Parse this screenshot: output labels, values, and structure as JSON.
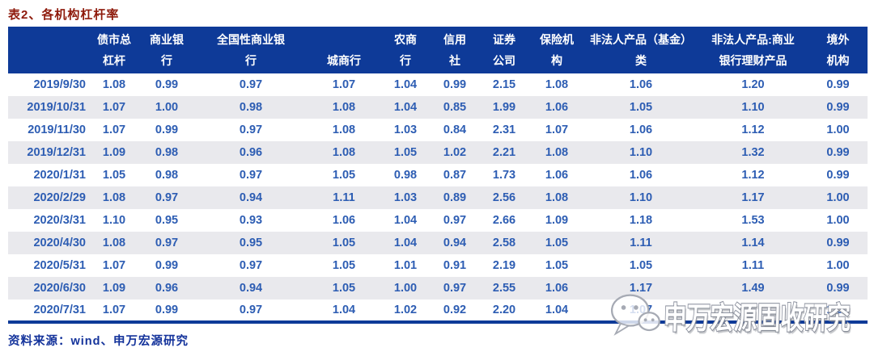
{
  "page": {
    "title": "表2、各机构杠杆率",
    "source": "资料来源：wind、申万宏源研究"
  },
  "watermark": {
    "icon": "wechat-icon",
    "text": "申万宏源固收研究"
  },
  "colors": {
    "header_bg": "#0e3a98",
    "title_red": "#8e1a0b",
    "cell_text_blue": "#2d5db3",
    "stripe_bg": "#e9e9ed",
    "source_blue": "#14339b",
    "table_border": "#0e3a98"
  },
  "chart_data": {
    "type": "table",
    "title": "表2、各机构杠杆率",
    "source": "资料来源：wind、申万宏源研究",
    "columns": [
      "",
      "债市总杠杆",
      "商业银行",
      "全国性商业银行",
      "城商行",
      "农商行",
      "信用社",
      "证券公司",
      "保险机构",
      "非法人产品（基金）类",
      "非法人产品:商业银行理财产品",
      "境外机构"
    ],
    "header_lines": [
      "",
      "债市总\n杠杆",
      "商业银\n行",
      "全国性商业银\n行",
      "\n城商行",
      "农商\n行",
      "信用\n社",
      "证券\n公司",
      "保险机\n构",
      "非法人产品（基金）\n类",
      "非法人产品:商业\n银行理财产品",
      "境外\n机构"
    ],
    "rows": [
      {
        "date": "2019/9/30",
        "values": [
          "1.08",
          "0.99",
          "0.97",
          "1.07",
          "1.04",
          "0.99",
          "2.15",
          "1.08",
          "1.06",
          "1.20",
          "0.99"
        ]
      },
      {
        "date": "2019/10/31",
        "values": [
          "1.07",
          "1.00",
          "0.98",
          "1.08",
          "1.04",
          "0.85",
          "1.99",
          "1.06",
          "1.05",
          "1.10",
          "0.99"
        ]
      },
      {
        "date": "2019/11/30",
        "values": [
          "1.07",
          "0.99",
          "0.97",
          "1.08",
          "1.03",
          "0.84",
          "2.31",
          "1.07",
          "1.06",
          "1.12",
          "1.00"
        ]
      },
      {
        "date": "2019/12/31",
        "values": [
          "1.09",
          "0.98",
          "0.96",
          "1.08",
          "1.05",
          "1.02",
          "2.21",
          "1.08",
          "1.10",
          "1.32",
          "0.99"
        ]
      },
      {
        "date": "2020/1/31",
        "values": [
          "1.05",
          "0.98",
          "0.97",
          "1.05",
          "0.98",
          "0.87",
          "1.73",
          "1.06",
          "1.06",
          "1.12",
          "0.99"
        ]
      },
      {
        "date": "2020/2/29",
        "values": [
          "1.08",
          "0.97",
          "0.94",
          "1.11",
          "1.03",
          "0.89",
          "2.56",
          "1.08",
          "1.10",
          "1.17",
          "1.00"
        ]
      },
      {
        "date": "2020/3/31",
        "values": [
          "1.10",
          "0.95",
          "0.93",
          "1.06",
          "1.04",
          "0.97",
          "2.66",
          "1.09",
          "1.18",
          "1.53",
          "1.00"
        ]
      },
      {
        "date": "2020/4/30",
        "values": [
          "1.08",
          "0.97",
          "0.95",
          "1.05",
          "1.04",
          "0.94",
          "2.58",
          "1.05",
          "1.11",
          "1.14",
          "0.99"
        ]
      },
      {
        "date": "2020/5/31",
        "values": [
          "1.07",
          "0.99",
          "0.97",
          "1.05",
          "1.01",
          "0.91",
          "2.19",
          "1.05",
          "1.05",
          "1.11",
          "1.00"
        ]
      },
      {
        "date": "2020/6/30",
        "values": [
          "1.09",
          "0.96",
          "0.94",
          "1.05",
          "1.00",
          "0.97",
          "2.55",
          "1.06",
          "1.17",
          "1.49",
          "0.99"
        ]
      },
      {
        "date": "2020/7/31",
        "values": [
          "1.07",
          "0.99",
          "0.97",
          "1.04",
          "1.02",
          "0.92",
          "2.20",
          "1.04",
          "1.07",
          "",
          "1.00"
        ]
      }
    ]
  }
}
